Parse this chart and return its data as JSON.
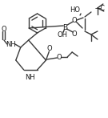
{
  "bg_color": "#ffffff",
  "line_color": "#3a3a3a",
  "text_color": "#1a1a1a",
  "font_size": 6.0,
  "line_width": 1.0,
  "figsize": [
    1.35,
    1.47
  ],
  "dpi": 100,
  "xlim": [
    0,
    135
  ],
  "ylim": [
    0,
    147
  ]
}
